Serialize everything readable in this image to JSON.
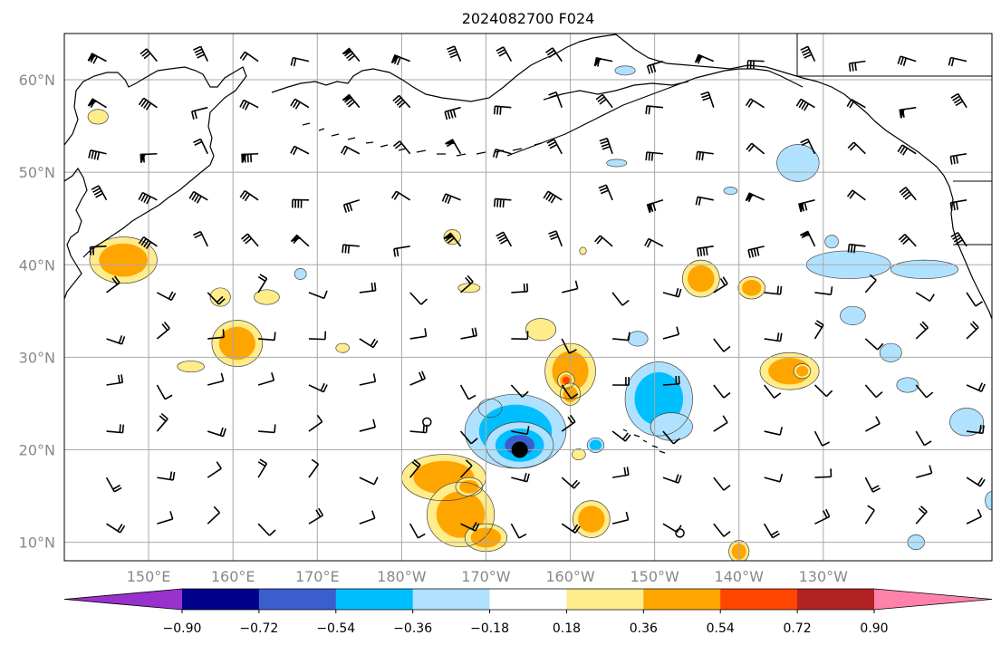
{
  "title": "2024082700 F024",
  "map": {
    "projection": "PlateCarree, centered on dateline",
    "lon_range": [
      140,
      250
    ],
    "lat_range": [
      8,
      65
    ],
    "grid": true,
    "lon_ticks": [
      150,
      160,
      170,
      180,
      190,
      200,
      210,
      220,
      230
    ],
    "lon_tick_labels": [
      "150°E",
      "160°E",
      "170°E",
      "180°W",
      "170°W",
      "160°W",
      "150°W",
      "140°W",
      "130°W"
    ],
    "lat_ticks": [
      10,
      20,
      30,
      40,
      50,
      60
    ],
    "lat_tick_labels": [
      "10°N",
      "20°N",
      "30°N",
      "40°N",
      "50°N",
      "60°N"
    ],
    "marker": {
      "name": "storm-center",
      "lon": 194,
      "lat": 20
    },
    "open_circles": [
      {
        "lon": 183,
        "lat": 23
      },
      {
        "lon": 213,
        "lat": 11
      }
    ]
  },
  "colorbar": {
    "orientation": "horizontal",
    "extend": "both",
    "boundaries": [
      -0.9,
      -0.72,
      -0.54,
      -0.36,
      -0.18,
      0.18,
      0.36,
      0.54,
      0.72,
      0.9
    ],
    "tick_labels": [
      "−0.90",
      "−0.72",
      "−0.54",
      "−0.36",
      "−0.18",
      "0.18",
      "0.36",
      "0.54",
      "0.72",
      "0.90"
    ],
    "colors": [
      "#9932cc",
      "#00008b",
      "#3a5fcd",
      "#00bfff",
      "#b0e2ff",
      "#ffffff",
      "#ffec8b",
      "#ffa500",
      "#ff4500",
      "#b22222",
      "#ff82ab"
    ]
  },
  "anomalies": [
    {
      "lon": 147,
      "lat": 40.5,
      "rx": 4,
      "ry": 2.5,
      "level": 0.45
    },
    {
      "lon": 160.5,
      "lat": 31.5,
      "rx": 3,
      "ry": 2.5,
      "level": 0.45
    },
    {
      "lon": 158.5,
      "lat": 36.5,
      "rx": 1.2,
      "ry": 1.0,
      "level": 0.25
    },
    {
      "lon": 164,
      "lat": 36.5,
      "rx": 1.5,
      "ry": 0.8,
      "level": 0.25
    },
    {
      "lon": 144,
      "lat": 56,
      "rx": 1.2,
      "ry": 0.8,
      "level": 0.25
    },
    {
      "lon": 155,
      "lat": 29,
      "rx": 1.6,
      "ry": 0.6,
      "level": 0.25
    },
    {
      "lon": 173,
      "lat": 31,
      "rx": 0.8,
      "ry": 0.5,
      "level": 0.25
    },
    {
      "lon": 185,
      "lat": 17,
      "rx": 5,
      "ry": 2.5,
      "level": 0.45
    },
    {
      "lon": 187,
      "lat": 13,
      "rx": 4,
      "ry": 3.5,
      "level": 0.45
    },
    {
      "lon": 190,
      "lat": 10.5,
      "rx": 2.5,
      "ry": 1.5,
      "level": 0.45
    },
    {
      "lon": 188,
      "lat": 16,
      "rx": 1.6,
      "ry": 1.0,
      "level": 0.45
    },
    {
      "lon": 196.5,
      "lat": 33,
      "rx": 1.8,
      "ry": 1.2,
      "level": 0.25
    },
    {
      "lon": 188,
      "lat": 37.5,
      "rx": 1.3,
      "ry": 0.5,
      "level": 0.25
    },
    {
      "lon": 186,
      "lat": 43,
      "rx": 1.0,
      "ry": 0.8,
      "level": 0.25
    },
    {
      "lon": 200,
      "lat": 28.5,
      "rx": 3,
      "ry": 3,
      "level": 0.45
    },
    {
      "lon": 199.5,
      "lat": 27.5,
      "rx": 1.0,
      "ry": 0.9,
      "level": 0.6
    },
    {
      "lon": 200,
      "lat": 26,
      "rx": 1.2,
      "ry": 1.2,
      "level": 0.45
    },
    {
      "lon": 202.5,
      "lat": 12.5,
      "rx": 2.2,
      "ry": 2.0,
      "level": 0.45
    },
    {
      "lon": 201,
      "lat": 19.5,
      "rx": 0.8,
      "ry": 0.6,
      "level": 0.25
    },
    {
      "lon": 215.5,
      "lat": 38.5,
      "rx": 2.2,
      "ry": 2.0,
      "level": 0.45
    },
    {
      "lon": 221.5,
      "lat": 37.5,
      "rx": 1.6,
      "ry": 1.2,
      "level": 0.45
    },
    {
      "lon": 226,
      "lat": 28.5,
      "rx": 3.5,
      "ry": 2.0,
      "level": 0.45
    },
    {
      "lon": 227.5,
      "lat": 28.5,
      "rx": 1.0,
      "ry": 0.8,
      "level": 0.45
    },
    {
      "lon": 220,
      "lat": 9,
      "rx": 1.2,
      "ry": 1.2,
      "level": 0.45
    },
    {
      "lon": 201.5,
      "lat": 41.5,
      "rx": 0.4,
      "ry": 0.4,
      "level": 0.25
    },
    {
      "lon": 190.5,
      "lat": 24.5,
      "rx": 1.4,
      "ry": 1.0,
      "level": -0.25
    },
    {
      "lon": 193.5,
      "lat": 22,
      "rx": 6,
      "ry": 4,
      "level": -0.45
    },
    {
      "lon": 194,
      "lat": 20.5,
      "rx": 4,
      "ry": 2.5,
      "level": -0.6
    },
    {
      "lon": 210.5,
      "lat": 25.5,
      "rx": 4,
      "ry": 4,
      "level": -0.45
    },
    {
      "lon": 212,
      "lat": 22.5,
      "rx": 2.5,
      "ry": 1.5,
      "level": -0.25
    },
    {
      "lon": 203,
      "lat": 20.5,
      "rx": 1.0,
      "ry": 0.8,
      "level": -0.45
    },
    {
      "lon": 208,
      "lat": 32,
      "rx": 1.2,
      "ry": 0.8,
      "level": -0.25
    },
    {
      "lon": 233,
      "lat": 40,
      "rx": 5,
      "ry": 1.5,
      "level": -0.25
    },
    {
      "lon": 242,
      "lat": 39.5,
      "rx": 4,
      "ry": 1.0,
      "level": -0.25
    },
    {
      "lon": 227,
      "lat": 51,
      "rx": 2.5,
      "ry": 2.0,
      "level": -0.25
    },
    {
      "lon": 233.5,
      "lat": 34.5,
      "rx": 1.5,
      "ry": 1.0,
      "level": -0.25
    },
    {
      "lon": 247,
      "lat": 23,
      "rx": 2.0,
      "ry": 1.5,
      "level": -0.25
    },
    {
      "lon": 238,
      "lat": 30.5,
      "rx": 1.3,
      "ry": 1.0,
      "level": -0.25
    },
    {
      "lon": 240,
      "lat": 27,
      "rx": 1.3,
      "ry": 0.8,
      "level": -0.25
    },
    {
      "lon": 231,
      "lat": 42.5,
      "rx": 0.8,
      "ry": 0.7,
      "level": -0.25
    },
    {
      "lon": 206.5,
      "lat": 61,
      "rx": 1.2,
      "ry": 0.5,
      "level": -0.25
    },
    {
      "lon": 168,
      "lat": 39,
      "rx": 0.7,
      "ry": 0.6,
      "level": -0.25
    },
    {
      "lon": 205.5,
      "lat": 51,
      "rx": 1.2,
      "ry": 0.4,
      "level": -0.25
    },
    {
      "lon": 241,
      "lat": 10,
      "rx": 1.0,
      "ry": 0.8,
      "level": -0.25
    },
    {
      "lon": 219,
      "lat": 48,
      "rx": 0.8,
      "ry": 0.4,
      "level": -0.25
    },
    {
      "lon": 250,
      "lat": 14.5,
      "rx": 0.8,
      "ry": 1.0,
      "level": -0.25
    }
  ]
}
